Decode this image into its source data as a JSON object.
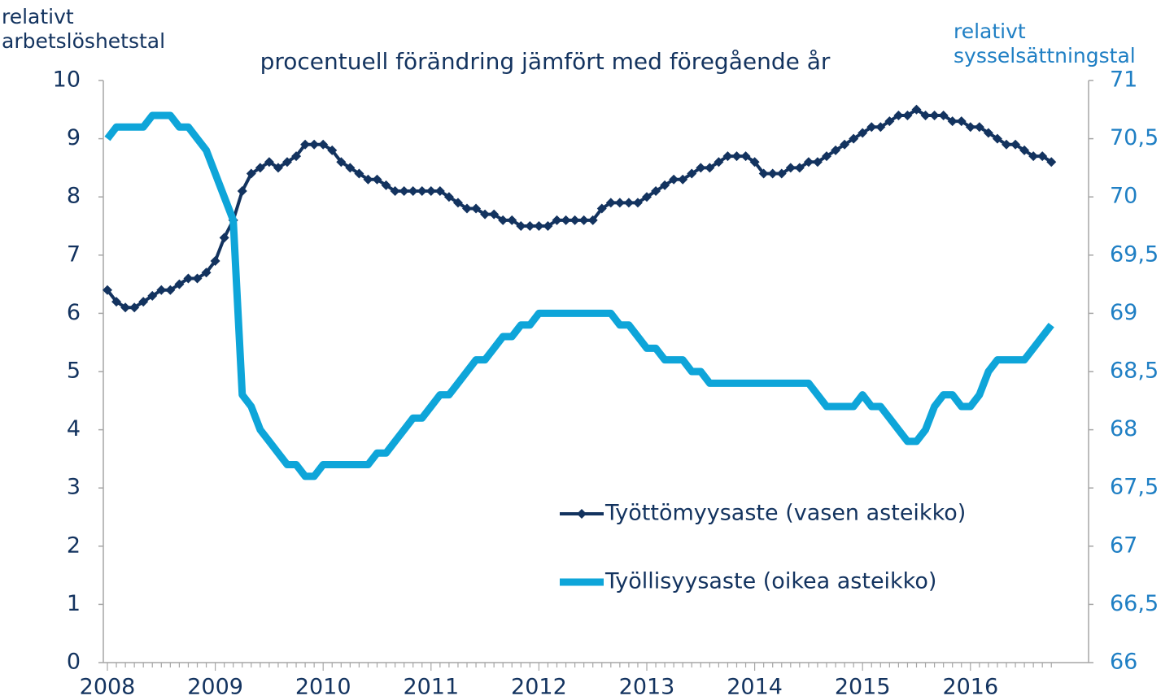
{
  "chart_data": {
    "type": "line",
    "title": "procentuell förändring jämfört med föregående år",
    "y_label": "relativt arbetslöshetstal",
    "y2_label": "relativt sysselsättningstal",
    "categories": [
      "2008",
      null,
      null,
      null,
      null,
      null,
      null,
      null,
      null,
      null,
      null,
      null,
      "2009",
      null,
      null,
      null,
      null,
      null,
      null,
      null,
      null,
      null,
      null,
      null,
      "2010",
      null,
      null,
      null,
      null,
      null,
      null,
      null,
      null,
      null,
      null,
      null,
      "2011",
      null,
      null,
      null,
      null,
      null,
      null,
      null,
      null,
      null,
      null,
      null,
      "2012",
      null,
      null,
      null,
      null,
      null,
      null,
      null,
      null,
      null,
      null,
      null,
      "2013",
      null,
      null,
      null,
      null,
      null,
      null,
      null,
      null,
      null,
      null,
      null,
      "2014",
      null,
      null,
      null,
      null,
      null,
      null,
      null,
      null,
      null,
      null,
      null,
      "2015",
      null,
      null,
      null,
      null,
      null,
      null,
      null,
      null,
      null,
      null,
      null,
      "2016",
      null,
      null,
      null,
      null,
      null,
      null,
      null,
      null,
      null
    ],
    "series": [
      {
        "name": "Työttömyysaste (vasen asteikko)",
        "color": "#13335f",
        "marker": "diamond",
        "values": [
          6.4,
          6.2,
          6.1,
          6.1,
          6.2,
          6.3,
          6.4,
          6.4,
          6.5,
          6.6,
          6.6,
          6.7,
          6.9,
          7.3,
          7.6,
          8.1,
          8.4,
          8.5,
          8.6,
          8.5,
          8.6,
          8.7,
          8.9,
          8.9,
          8.9,
          8.8,
          8.6,
          8.5,
          8.4,
          8.3,
          8.3,
          8.2,
          8.1,
          8.1,
          8.1,
          8.1,
          8.1,
          8.1,
          8.0,
          7.9,
          7.8,
          7.8,
          7.7,
          7.7,
          7.6,
          7.6,
          7.5,
          7.5,
          7.5,
          7.5,
          7.6,
          7.6,
          7.6,
          7.6,
          7.6,
          7.8,
          7.9,
          7.9,
          7.9,
          7.9,
          8.0,
          8.1,
          8.2,
          8.3,
          8.3,
          8.4,
          8.5,
          8.5,
          8.6,
          8.7,
          8.7,
          8.7,
          8.6,
          8.4,
          8.4,
          8.4,
          8.5,
          8.5,
          8.6,
          8.6,
          8.7,
          8.8,
          8.9,
          9.0,
          9.1,
          9.2,
          9.2,
          9.3,
          9.4,
          9.4,
          9.5,
          9.4,
          9.4,
          9.4,
          9.3,
          9.3,
          9.2,
          9.2,
          9.1,
          9.0,
          8.9,
          8.9,
          8.8,
          8.7,
          8.7,
          8.6
        ]
      },
      {
        "name": "Työllisyysaste (oikea asteikko)",
        "color": "#0ea5d9",
        "axis": "y2",
        "values": [
          70.5,
          70.6,
          70.6,
          70.6,
          70.6,
          70.7,
          70.7,
          70.7,
          70.6,
          70.6,
          70.5,
          70.4,
          70.2,
          70.0,
          69.8,
          68.3,
          68.2,
          68.0,
          67.9,
          67.8,
          67.7,
          67.7,
          67.6,
          67.6,
          67.7,
          67.7,
          67.7,
          67.7,
          67.7,
          67.7,
          67.8,
          67.8,
          67.9,
          68.0,
          68.1,
          68.1,
          68.2,
          68.3,
          68.3,
          68.4,
          68.5,
          68.6,
          68.6,
          68.7,
          68.8,
          68.8,
          68.9,
          68.9,
          69.0,
          69.0,
          69.0,
          69.0,
          69.0,
          69.0,
          69.0,
          69.0,
          69.0,
          68.9,
          68.9,
          68.8,
          68.7,
          68.7,
          68.6,
          68.6,
          68.6,
          68.5,
          68.5,
          68.4,
          68.4,
          68.4,
          68.4,
          68.4,
          68.4,
          68.4,
          68.4,
          68.4,
          68.4,
          68.4,
          68.4,
          68.3,
          68.2,
          68.2,
          68.2,
          68.2,
          68.3,
          68.2,
          68.2,
          68.1,
          68.0,
          67.9,
          67.9,
          68.0,
          68.2,
          68.3,
          68.3,
          68.2,
          68.2,
          68.3,
          68.5,
          68.6,
          68.6,
          68.6,
          68.6,
          68.7,
          68.8,
          68.9
        ]
      }
    ],
    "ylim": [
      0,
      10
    ],
    "yticks": [
      0,
      1,
      2,
      3,
      4,
      5,
      6,
      7,
      8,
      9,
      10
    ],
    "y2lim": [
      66,
      71
    ],
    "y2ticks": [
      66,
      {
        "value": 66.5,
        "label": "66,5"
      },
      67,
      {
        "value": 67.5,
        "label": "67,5"
      },
      68,
      {
        "value": 68.5,
        "label": "68,5"
      },
      69,
      {
        "value": 69.5,
        "label": "69,5"
      },
      70,
      {
        "value": 70.5,
        "label": "70,5"
      },
      71
    ],
    "grid": false,
    "legend": "lower right",
    "y_color": "#13335f",
    "y2_color": "#1f7fc4"
  }
}
